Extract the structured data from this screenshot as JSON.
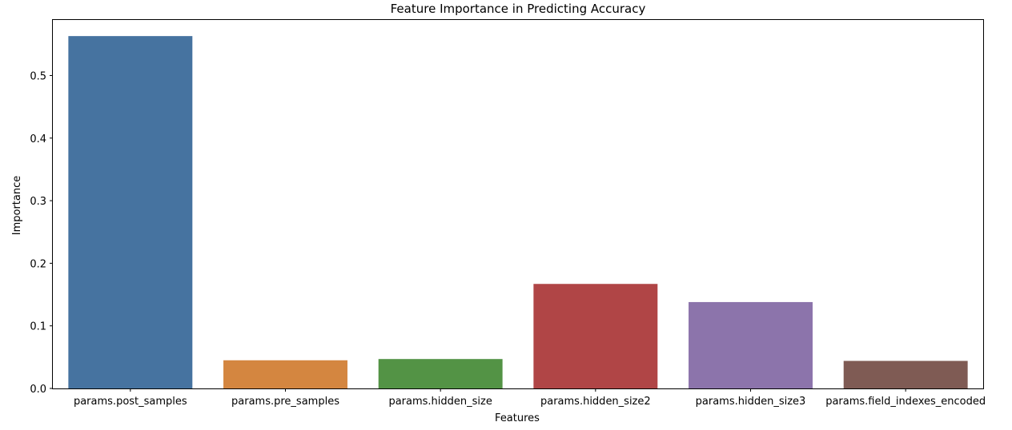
{
  "chart_data": {
    "type": "bar",
    "title": "Feature Importance in Predicting Accuracy",
    "xlabel": "Features",
    "ylabel": "Importance",
    "categories": [
      "params.post_samples",
      "params.pre_samples",
      "params.hidden_size",
      "params.hidden_size2",
      "params.hidden_size3",
      "params.field_indexes_encoded"
    ],
    "values": [
      0.563,
      0.045,
      0.047,
      0.167,
      0.138,
      0.044
    ],
    "colors": [
      "#4673a0",
      "#d48640",
      "#539345",
      "#b04546",
      "#8c74ab",
      "#7f5b54"
    ],
    "ylim": [
      0,
      0.59
    ],
    "yticks": [
      0.0,
      0.1,
      0.2,
      0.3,
      0.4,
      0.5
    ],
    "ytick_labels": [
      "0.0",
      "0.1",
      "0.2",
      "0.3",
      "0.4",
      "0.5"
    ],
    "grid": false,
    "legend": "none"
  }
}
